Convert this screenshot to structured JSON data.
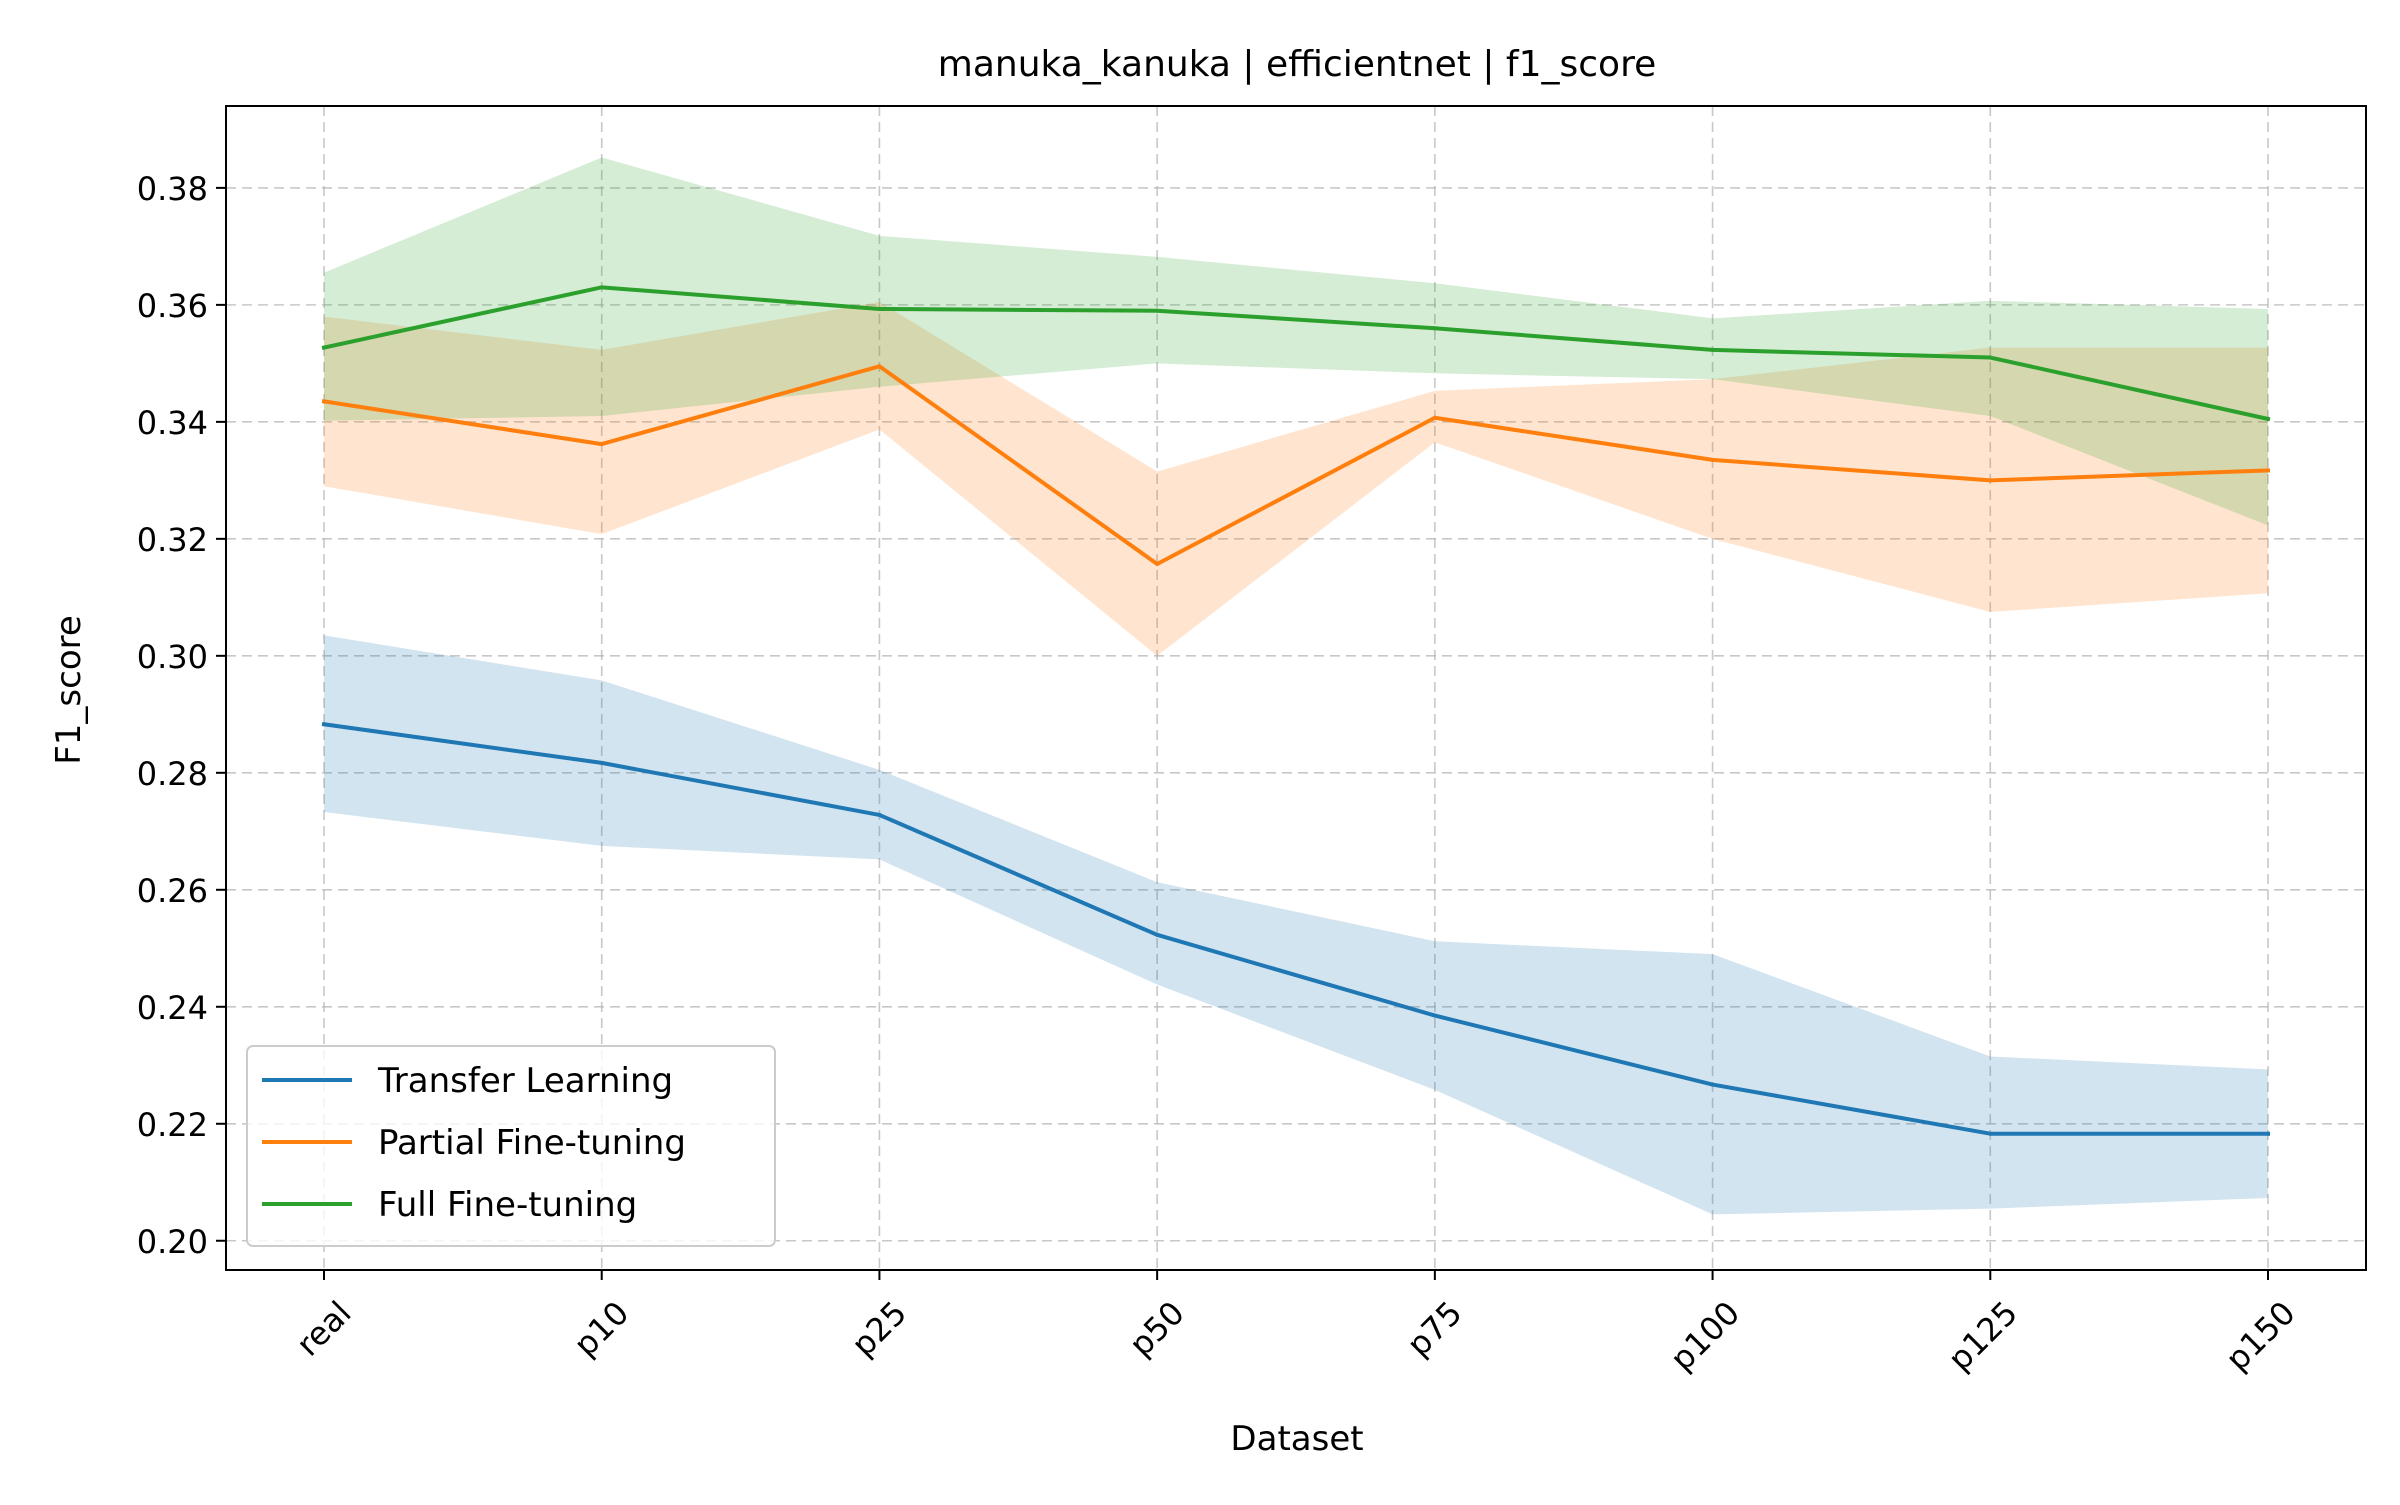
{
  "chart_data": {
    "type": "line",
    "title": "manuka_kanuka | efficientnet | f1_score",
    "xlabel": "Dataset",
    "ylabel": "F1_score",
    "categories": [
      "real",
      "p10",
      "p25",
      "p50",
      "p75",
      "p100",
      "p125",
      "p150"
    ],
    "ylim": [
      0.195,
      0.394
    ],
    "yticks": [
      0.2,
      0.22,
      0.24,
      0.26,
      0.28,
      0.3,
      0.32,
      0.34,
      0.36,
      0.38
    ],
    "ytick_labels": [
      "0.20",
      "0.22",
      "0.24",
      "0.26",
      "0.28",
      "0.30",
      "0.32",
      "0.34",
      "0.36",
      "0.38"
    ],
    "grid": true,
    "legend_position": "lower-left",
    "series": [
      {
        "name": "Transfer Learning",
        "color": "#1f77b4",
        "values": [
          0.2883,
          0.2817,
          0.2728,
          0.2523,
          0.2385,
          0.2267,
          0.2183,
          0.2183
        ],
        "lower": [
          0.2733,
          0.2675,
          0.2652,
          0.2438,
          0.2258,
          0.2045,
          0.2055,
          0.2073
        ],
        "upper": [
          0.3035,
          0.2958,
          0.2805,
          0.2613,
          0.2512,
          0.249,
          0.2315,
          0.2293
        ]
      },
      {
        "name": "Partial Fine-tuning",
        "color": "#ff7f0e",
        "values": [
          0.3435,
          0.3362,
          0.3495,
          0.3157,
          0.3407,
          0.3335,
          0.33,
          0.3317
        ],
        "lower": [
          0.329,
          0.3208,
          0.3387,
          0.3,
          0.3365,
          0.32,
          0.3075,
          0.3107
        ],
        "upper": [
          0.358,
          0.3523,
          0.3605,
          0.3315,
          0.3453,
          0.3473,
          0.3527,
          0.3527
        ]
      },
      {
        "name": "Full Fine-tuning",
        "color": "#2ca02c",
        "values": [
          0.3527,
          0.363,
          0.3593,
          0.359,
          0.356,
          0.3523,
          0.351,
          0.3405
        ],
        "lower": [
          0.3402,
          0.341,
          0.346,
          0.35,
          0.3483,
          0.3473,
          0.341,
          0.3223
        ],
        "upper": [
          0.3655,
          0.3852,
          0.3718,
          0.3682,
          0.3637,
          0.3577,
          0.3607,
          0.3593
        ]
      }
    ]
  }
}
